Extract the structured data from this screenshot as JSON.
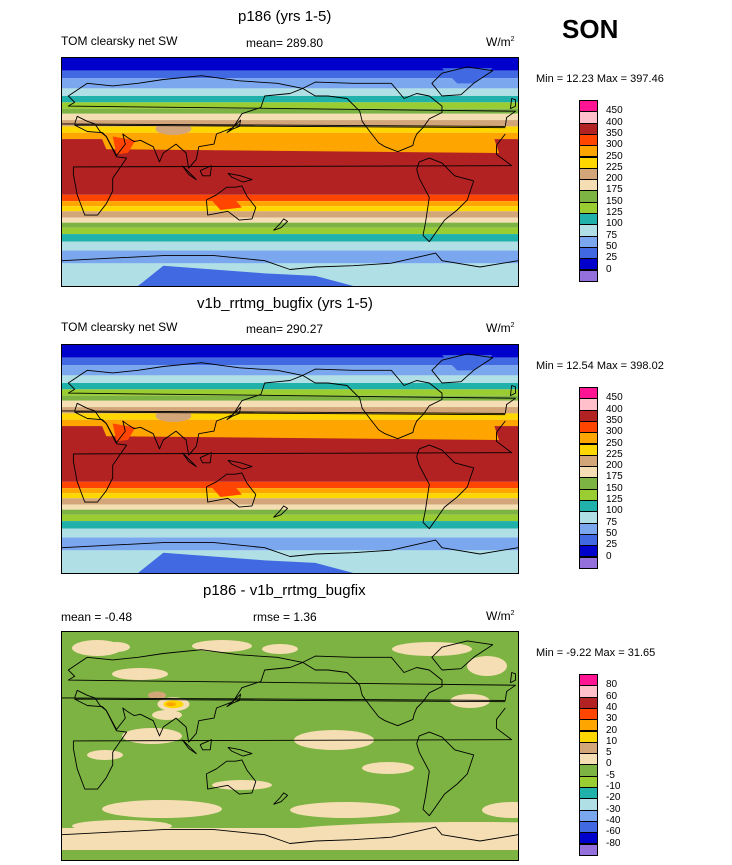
{
  "season": "SON",
  "panels": [
    {
      "title": "p186 (yrs 1-5)",
      "left_label": "TOM clearsky net SW",
      "stat": "mean= 289.80",
      "units_base": "W/m",
      "units_sup": "2",
      "minmax": "Min = 12.23 Max = 397.46",
      "kind": "field"
    },
    {
      "title": "v1b_rrtmg_bugfix (yrs 1-5)",
      "left_label": "TOM clearsky net SW",
      "stat": "mean= 290.27",
      "units_base": "W/m",
      "units_sup": "2",
      "minmax": "Min = 12.54 Max = 398.02",
      "kind": "field"
    },
    {
      "title": "p186 - v1b_rrtmg_bugfix",
      "left_label": "mean = -0.48",
      "stat": "rmse = 1.36",
      "units_base": "W/m",
      "units_sup": "2",
      "minmax": "Min = -9.22 Max = 31.65",
      "kind": "diff"
    }
  ],
  "chart_data": [
    {
      "type": "heatmap",
      "title": "p186 (yrs 1-5)",
      "variable": "TOM clearsky net SW",
      "units": "W/m2",
      "mean": 289.8,
      "min": 12.23,
      "max": 397.46,
      "colorbar_levels": [
        0,
        25,
        50,
        75,
        100,
        125,
        150,
        175,
        200,
        225,
        250,
        300,
        350,
        400,
        450
      ],
      "colorbar_colors": [
        "#9370db",
        "#0000cd",
        "#4169e1",
        "#7ba7ef",
        "#b0e0e6",
        "#20b2aa",
        "#9acd32",
        "#7cb342",
        "#f5deb3",
        "#d2a679",
        "#ffd700",
        "#ffa500",
        "#ff4500",
        "#b22222",
        "#ffc0cb",
        "#ff1493"
      ]
    },
    {
      "type": "heatmap",
      "title": "v1b_rrtmg_bugfix (yrs 1-5)",
      "variable": "TOM clearsky net SW",
      "units": "W/m2",
      "mean": 290.27,
      "min": 12.54,
      "max": 398.02,
      "colorbar_levels": [
        0,
        25,
        50,
        75,
        100,
        125,
        150,
        175,
        200,
        225,
        250,
        300,
        350,
        400,
        450
      ],
      "colorbar_colors": [
        "#9370db",
        "#0000cd",
        "#4169e1",
        "#7ba7ef",
        "#b0e0e6",
        "#20b2aa",
        "#9acd32",
        "#7cb342",
        "#f5deb3",
        "#d2a679",
        "#ffd700",
        "#ffa500",
        "#ff4500",
        "#b22222",
        "#ffc0cb",
        "#ff1493"
      ]
    },
    {
      "type": "heatmap",
      "title": "p186 - v1b_rrtmg_bugfix",
      "units": "W/m2",
      "mean": -0.48,
      "rmse": 1.36,
      "min": -9.22,
      "max": 31.65,
      "colorbar_levels": [
        -80,
        -60,
        -40,
        -30,
        -20,
        -10,
        -5,
        0,
        5,
        10,
        20,
        30,
        40,
        60,
        80
      ],
      "colorbar_colors": [
        "#9370db",
        "#0000cd",
        "#4169e1",
        "#7ba7ef",
        "#b0e0e6",
        "#20b2aa",
        "#9acd32",
        "#7cb342",
        "#f5deb3",
        "#d2a679",
        "#ffd700",
        "#ffa500",
        "#ff4500",
        "#b22222",
        "#ffc0cb",
        "#ff1493"
      ]
    }
  ]
}
